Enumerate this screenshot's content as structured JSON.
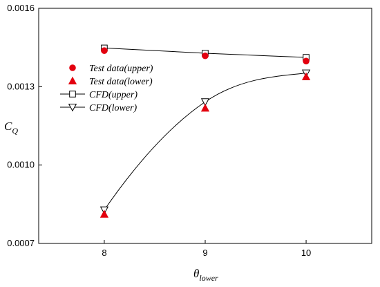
{
  "chart_data": {
    "type": "line",
    "xlabel_main": "θ",
    "xlabel_sub": "lower",
    "ylabel_main": "C",
    "ylabel_sub": "Q",
    "xlim": [
      7.35,
      10.65
    ],
    "ylim": [
      0.0007,
      0.0016
    ],
    "x_ticks": [
      8,
      9,
      10
    ],
    "x_tick_labels": [
      "8",
      "9",
      "10"
    ],
    "y_ticks": [
      0.0007,
      0.001,
      0.0013,
      0.0016
    ],
    "y_tick_labels": [
      "0.0007",
      "0.0010",
      "0.0013",
      "0.0016"
    ],
    "grid": false,
    "legend_position": "upper-left",
    "series": [
      {
        "name": "Test data(upper)",
        "marker": "circle",
        "filled": true,
        "color": "#e3000f",
        "line": false,
        "x": [
          8,
          9,
          10
        ],
        "y": [
          0.001438,
          0.001418,
          0.001398
        ]
      },
      {
        "name": "Test data(lower)",
        "marker": "triangle-up",
        "filled": true,
        "color": "#e3000f",
        "line": false,
        "x": [
          8,
          9,
          10
        ],
        "y": [
          0.000812,
          0.001218,
          0.001338
        ]
      },
      {
        "name": "CFD(upper)",
        "marker": "square",
        "filled": false,
        "color": "#000000",
        "line": true,
        "curve": "straight",
        "x": [
          8,
          9,
          10
        ],
        "y": [
          0.001448,
          0.001428,
          0.001412
        ]
      },
      {
        "name": "CFD(lower)",
        "marker": "triangle-down",
        "filled": false,
        "color": "#000000",
        "line": true,
        "curve": "smooth",
        "x": [
          8,
          9,
          10
        ],
        "y": [
          0.000828,
          0.001242,
          0.001352
        ]
      }
    ]
  }
}
